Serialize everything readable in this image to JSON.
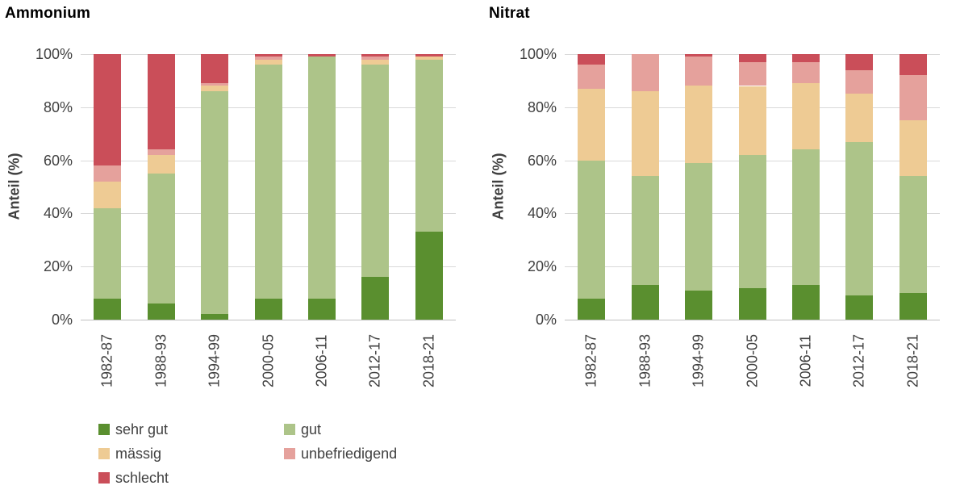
{
  "page": {
    "background": "#ffffff"
  },
  "legend": {
    "items": [
      {
        "label": "sehr gut",
        "color": "#5a8f2f"
      },
      {
        "label": "gut",
        "color": "#adc489"
      },
      {
        "label": "mässig",
        "color": "#eecb94"
      },
      {
        "label": "unbefriedigend",
        "color": "#e5a19c"
      },
      {
        "label": "schlecht",
        "color": "#ca4e59"
      }
    ]
  },
  "chart_data": [
    {
      "type": "bar",
      "stacked": true,
      "title": "Ammonium",
      "xlabel": "",
      "ylabel": "Anteil (%)",
      "ylim": [
        0,
        100
      ],
      "grid": true,
      "legend_position": "bottom",
      "yticks": [
        "0%",
        "20%",
        "40%",
        "60%",
        "80%",
        "100%"
      ],
      "categories": [
        "1982-87",
        "1988-93",
        "1994-99",
        "2000-05",
        "2006-11",
        "2012-17",
        "2018-21"
      ],
      "series": [
        {
          "name": "sehr gut",
          "color": "#5a8f2f",
          "values": [
            8,
            6,
            2,
            8,
            8,
            16,
            33
          ]
        },
        {
          "name": "gut",
          "color": "#adc489",
          "values": [
            34,
            49,
            84,
            88,
            91,
            80,
            65
          ]
        },
        {
          "name": "mässig",
          "color": "#eecb94",
          "values": [
            10,
            7,
            2,
            2,
            0,
            2,
            1
          ]
        },
        {
          "name": "unbefriedigend",
          "color": "#e5a19c",
          "values": [
            6,
            2,
            1,
            1,
            0,
            1,
            0
          ]
        },
        {
          "name": "schlecht",
          "color": "#ca4e59",
          "values": [
            42,
            36,
            11,
            1,
            1,
            1,
            1
          ]
        }
      ]
    },
    {
      "type": "bar",
      "stacked": true,
      "title": "Nitrat",
      "xlabel": "",
      "ylabel": "Anteil (%)",
      "ylim": [
        0,
        100
      ],
      "grid": true,
      "legend_position": "bottom",
      "yticks": [
        "0%",
        "20%",
        "40%",
        "60%",
        "80%",
        "100%"
      ],
      "categories": [
        "1982-87",
        "1988-93",
        "1994-99",
        "2000-05",
        "2006-11",
        "2012-17",
        "2018-21"
      ],
      "series": [
        {
          "name": "sehr gut",
          "color": "#5a8f2f",
          "values": [
            8,
            13,
            11,
            12,
            13,
            9,
            10
          ]
        },
        {
          "name": "gut",
          "color": "#adc489",
          "values": [
            52,
            41,
            48,
            50,
            51,
            58,
            44
          ]
        },
        {
          "name": "mässig",
          "color": "#eecb94",
          "values": [
            27,
            32,
            29,
            26,
            25,
            18,
            21
          ]
        },
        {
          "name": "unbefriedigend",
          "color": "#e5a19c",
          "values": [
            9,
            14,
            11,
            9,
            8,
            9,
            17
          ]
        },
        {
          "name": "schlecht",
          "color": "#ca4e59",
          "values": [
            4,
            0,
            1,
            3,
            3,
            6,
            8
          ]
        }
      ]
    }
  ]
}
